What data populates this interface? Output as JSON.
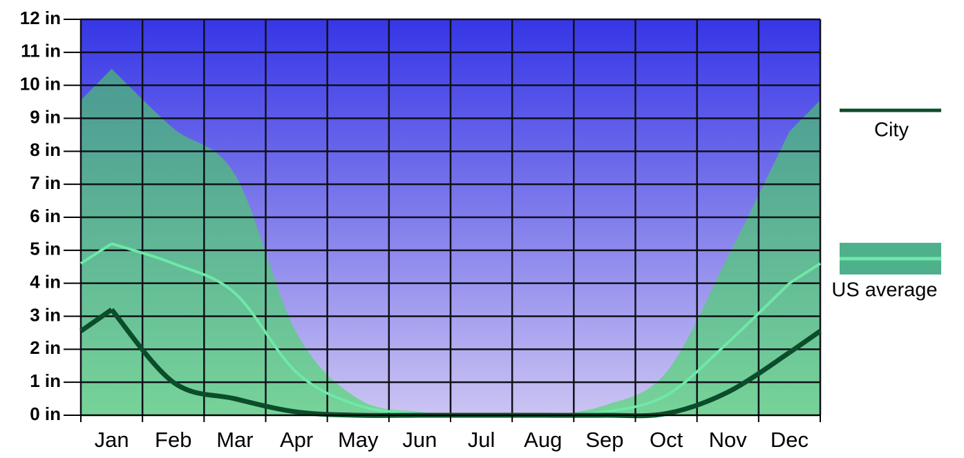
{
  "chart_data": {
    "type": "line",
    "categories": [
      "Jan",
      "Feb",
      "Mar",
      "Apr",
      "May",
      "Jun",
      "Jul",
      "Aug",
      "Sep",
      "Oct",
      "Nov",
      "Dec"
    ],
    "series": [
      {
        "name": "City",
        "color": "#0b4d2a",
        "values": [
          3.2,
          1.0,
          0.5,
          0.1,
          0,
          0,
          0,
          0,
          0,
          0.05,
          0.7,
          1.9
        ]
      },
      {
        "name": "US average",
        "color": "#6ee8a8",
        "band_color": "#4fb08c",
        "values": [
          5.2,
          4.6,
          3.7,
          1.3,
          0.3,
          0.05,
          0,
          0,
          0.1,
          0.6,
          2.2,
          4.0
        ],
        "range_high": [
          10.5,
          8.7,
          7.3,
          2.5,
          0.5,
          0.1,
          0,
          0,
          0.3,
          1.3,
          4.8,
          8.6
        ]
      }
    ],
    "ylim": [
      0,
      12
    ],
    "yticks": [
      {
        "value": 0,
        "label": "0 in"
      },
      {
        "value": 1,
        "label": "1 in"
      },
      {
        "value": 2,
        "label": "2 in"
      },
      {
        "value": 3,
        "label": "3 in"
      },
      {
        "value": 4,
        "label": "4 in"
      },
      {
        "value": 5,
        "label": "5 in"
      },
      {
        "value": 6,
        "label": "6 in"
      },
      {
        "value": 7,
        "label": "7 in"
      },
      {
        "value": 8,
        "label": "8 in"
      },
      {
        "value": 9,
        "label": "9 in"
      },
      {
        "value": 10,
        "label": "10 in"
      },
      {
        "value": 11,
        "label": "11 in"
      },
      {
        "value": 12,
        "label": "12 in"
      }
    ],
    "grid": true
  }
}
